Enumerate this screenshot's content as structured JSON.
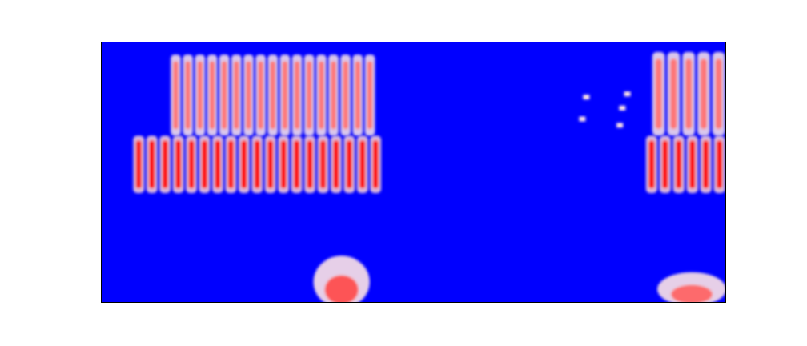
{
  "chart_data": {
    "type": "heatmap",
    "title": "",
    "xlabel": "",
    "ylabel": "",
    "axes_ticks": "none",
    "grid": false,
    "colormap": {
      "low": "#0000ff",
      "mid": "#ffffff",
      "high": "#ff0000"
    },
    "x_range": [
      0,
      1
    ],
    "y_range": [
      0,
      1
    ],
    "background_level": 0.0,
    "regions": [
      {
        "name": "left-band-burst",
        "x": [
          0.05,
          0.45
        ],
        "y": [
          0.42,
          0.64
        ],
        "peak_level": 1.0,
        "pattern": "vertical-striations",
        "stripe_count": 19
      },
      {
        "name": "left-upper-harmonics",
        "x": [
          0.11,
          0.44
        ],
        "y": [
          0.64,
          0.95
        ],
        "peak_level": 0.55,
        "pattern": "vertical-striations",
        "stripe_count": 17
      },
      {
        "name": "left-low-blob",
        "x": [
          0.34,
          0.43
        ],
        "y": [
          0.0,
          0.2
        ],
        "peak_level": 0.8,
        "pattern": "blob"
      },
      {
        "name": "right-band-burst",
        "x": [
          0.87,
          1.0
        ],
        "y": [
          0.42,
          0.64
        ],
        "peak_level": 1.0,
        "pattern": "vertical-striations",
        "stripe_count": 6
      },
      {
        "name": "right-upper-harmonics",
        "x": [
          0.88,
          1.0
        ],
        "y": [
          0.64,
          0.96
        ],
        "peak_level": 0.55,
        "pattern": "vertical-striations",
        "stripe_count": 5
      },
      {
        "name": "right-low-blobs",
        "x": [
          0.89,
          1.0
        ],
        "y": [
          0.0,
          0.13
        ],
        "peak_level": 0.7,
        "pattern": "blob"
      },
      {
        "name": "isolated-specks",
        "x": [
          0.77,
          0.85
        ],
        "y": [
          0.68,
          0.8
        ],
        "peak_level": 0.5,
        "pattern": "specks"
      }
    ]
  }
}
